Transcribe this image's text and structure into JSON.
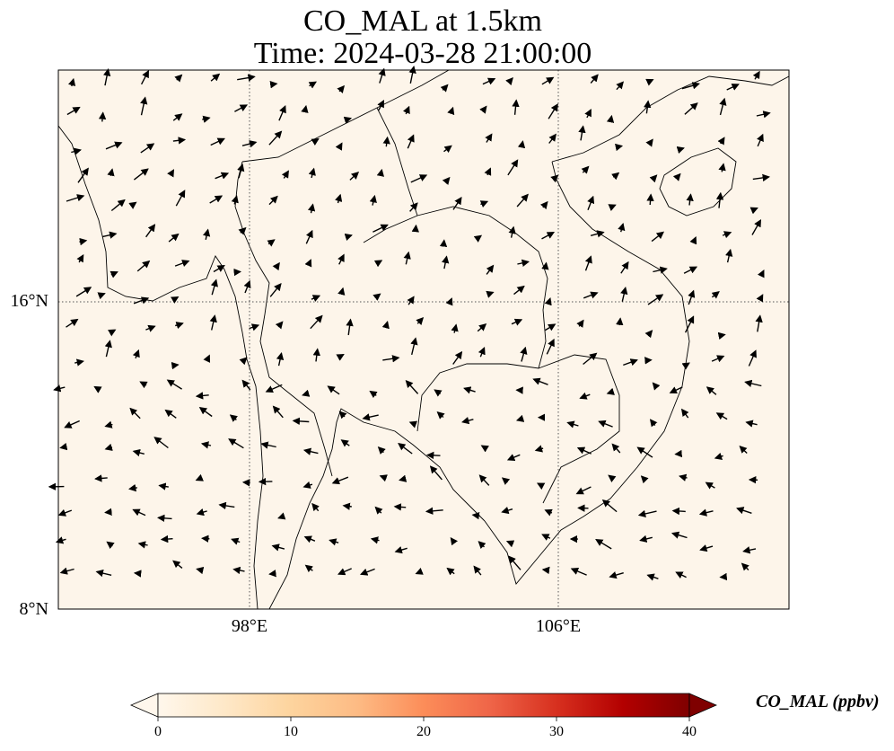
{
  "title": {
    "line1": "CO_MAL at 1.5km",
    "line2": "Time: 2024-03-28 21:00:00"
  },
  "map": {
    "field_color": "#fdf5ea",
    "lat_ticks": [
      "16°N",
      "8°N"
    ],
    "lon_ticks": [
      "98°E",
      "106°E"
    ],
    "gridlines": "dotted",
    "wind_vectors": "black arrows"
  },
  "colorbar": {
    "label": "CO_MAL (ppbv)",
    "ticks": [
      "0",
      "10",
      "20",
      "30",
      "40"
    ],
    "min": 0,
    "max": 40,
    "extend": "both",
    "colormap": [
      "#fff7ec",
      "#fee8c8",
      "#fdd49e",
      "#fdbb84",
      "#fc8d59",
      "#ef6548",
      "#d7301f",
      "#b30000",
      "#7f0000"
    ]
  }
}
